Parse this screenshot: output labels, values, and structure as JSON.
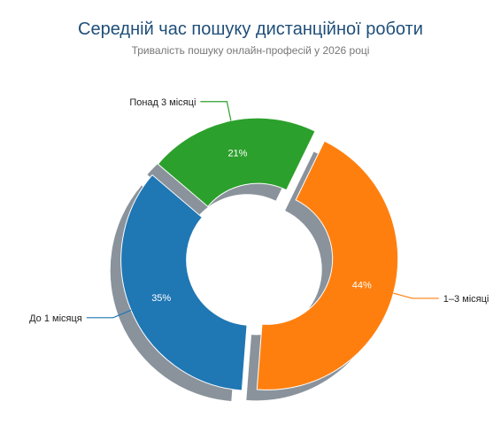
{
  "chart_data": {
    "type": "pie",
    "variant": "donut",
    "title": "Середній час пошуку дистанційної роботи",
    "subtitle": "Тривалість пошуку онлайн-професій у 2026 році",
    "categories": [
      "1–3 місяці",
      "До 1 місяця",
      "Понад 3 місяці"
    ],
    "values": [
      44,
      35,
      21
    ],
    "value_labels": [
      "44%",
      "35%",
      "21%"
    ],
    "colors": [
      "#ff7f0e",
      "#1f77b4",
      "#2ca02c"
    ],
    "exploded": true,
    "shadow": true,
    "legend": "none"
  }
}
